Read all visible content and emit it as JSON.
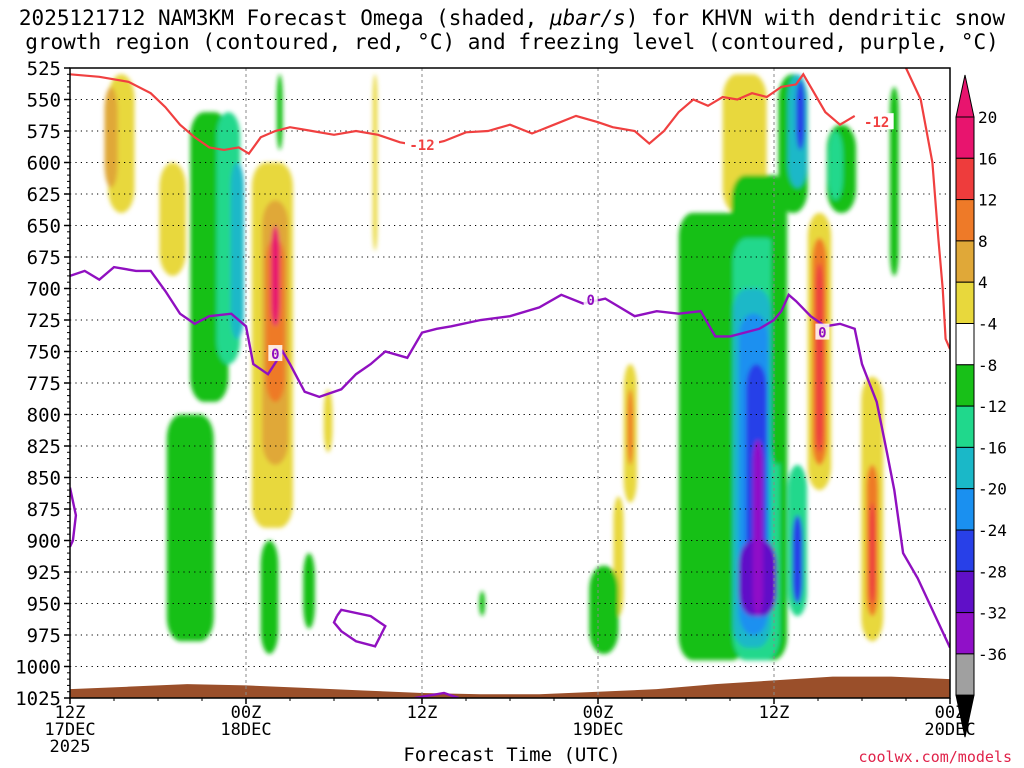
{
  "title": {
    "line1_prefix": "2025121712 NAM3KM Forecast Omega (shaded, ",
    "line1_unit": "μbar/s",
    "line1_suffix": ") for KHVN with dendritic snow",
    "line2": "growth region (contoured, red, °C) and freezing level (contoured, purple, °C)"
  },
  "credit": "coolwx.com/models",
  "colors": {
    "dgz_contour": "#f04040",
    "freezing_contour": "#9010c0",
    "terrain": "#9a4f2a",
    "grid": "#000000"
  },
  "chart_data": {
    "type": "heatmap",
    "title": "2025121712 NAM3KM Forecast Omega (shaded, μbar/s) for KHVN with dendritic snow growth region (contoured, red, °C) and freezing level (contoured, purple, °C)",
    "xlabel": "Forecast Time (UTC)",
    "ylabel": "",
    "x_range_hours": [
      0,
      60
    ],
    "xlim_labels": [
      "12Z 17DEC 2025",
      "00Z 20DEC"
    ],
    "y_levels_mb": [
      525,
      550,
      575,
      600,
      625,
      650,
      675,
      700,
      725,
      750,
      775,
      800,
      825,
      850,
      875,
      900,
      925,
      950,
      975,
      1000,
      1025
    ],
    "ylim": [
      525,
      1025
    ],
    "y_reversed": true,
    "x_ticks": [
      {
        "hour": 0,
        "lines": [
          "12Z",
          "17DEC",
          "2025"
        ]
      },
      {
        "hour": 12,
        "lines": [
          "00Z",
          "18DEC"
        ]
      },
      {
        "hour": 24,
        "lines": [
          "12Z"
        ]
      },
      {
        "hour": 36,
        "lines": [
          "00Z",
          "19DEC"
        ]
      },
      {
        "hour": 48,
        "lines": [
          "12Z"
        ]
      },
      {
        "hour": 60,
        "lines": [
          "00Z",
          "20DEC"
        ]
      }
    ],
    "colorbar": {
      "labels": [
        "20",
        "16",
        "12",
        "8",
        "4",
        "-4",
        "-8",
        "-12",
        "-16",
        "-20",
        "-24",
        "-28",
        "-32",
        "-36"
      ],
      "bins": [
        {
          "min": 20,
          "max": 24,
          "color": "#e8146e"
        },
        {
          "min": 16,
          "max": 20,
          "color": "#ee3c3c"
        },
        {
          "min": 12,
          "max": 16,
          "color": "#ee7a28"
        },
        {
          "min": 8,
          "max": 12,
          "color": "#e0a838"
        },
        {
          "min": 4,
          "max": 8,
          "color": "#e8d83c"
        },
        {
          "min": -4,
          "max": 4,
          "color": "#ffffff"
        },
        {
          "min": -8,
          "max": -4,
          "color": "#18c018"
        },
        {
          "min": -12,
          "max": -8,
          "color": "#20d88c"
        },
        {
          "min": -16,
          "max": -12,
          "color": "#1ab8c8"
        },
        {
          "min": -20,
          "max": -16,
          "color": "#1a90f0"
        },
        {
          "min": -24,
          "max": -20,
          "color": "#2840e8"
        },
        {
          "min": -28,
          "max": -24,
          "color": "#6010c8"
        },
        {
          "min": -32,
          "max": -28,
          "color": "#9010c8"
        },
        {
          "min": -36,
          "max": -32,
          "color": "#a0a0a0"
        }
      ],
      "top_arrow_color": "#e8146e",
      "bottom_arrow_color": "#000000"
    },
    "omega_features": [
      {
        "hour": 3.5,
        "top": 530,
        "bottom": 640,
        "width": 1.8,
        "value": 6
      },
      {
        "hour": 2.8,
        "top": 540,
        "bottom": 620,
        "width": 0.9,
        "value": 9
      },
      {
        "hour": 8.2,
        "top": 800,
        "bottom": 980,
        "width": 3.2,
        "value": -6
      },
      {
        "hour": 9.5,
        "top": 560,
        "bottom": 790,
        "width": 2.6,
        "value": -6
      },
      {
        "hour": 10.8,
        "top": 560,
        "bottom": 760,
        "width": 1.6,
        "value": -10
      },
      {
        "hour": 11.4,
        "top": 600,
        "bottom": 740,
        "width": 0.9,
        "value": -14
      },
      {
        "hour": 7.0,
        "top": 600,
        "bottom": 690,
        "width": 1.8,
        "value": 5
      },
      {
        "hour": 13.8,
        "top": 600,
        "bottom": 890,
        "width": 2.8,
        "value": 6
      },
      {
        "hour": 14.0,
        "top": 630,
        "bottom": 840,
        "width": 1.8,
        "value": 10
      },
      {
        "hour": 14.0,
        "top": 660,
        "bottom": 790,
        "width": 1.3,
        "value": 14
      },
      {
        "hour": 14.0,
        "top": 650,
        "bottom": 730,
        "width": 0.6,
        "value": 22
      },
      {
        "hour": 17.6,
        "top": 780,
        "bottom": 830,
        "width": 0.6,
        "value": 5
      },
      {
        "hour": 13.6,
        "top": 900,
        "bottom": 990,
        "width": 1.2,
        "value": -6
      },
      {
        "hour": 16.3,
        "top": 910,
        "bottom": 970,
        "width": 0.8,
        "value": -6
      },
      {
        "hour": 20.8,
        "top": 530,
        "bottom": 670,
        "width": 0.3,
        "value": 5
      },
      {
        "hour": 14.3,
        "top": 530,
        "bottom": 590,
        "width": 0.4,
        "value": -6
      },
      {
        "hour": 38.2,
        "top": 760,
        "bottom": 870,
        "width": 0.9,
        "value": 6
      },
      {
        "hour": 38.2,
        "top": 780,
        "bottom": 840,
        "width": 0.4,
        "value": 14
      },
      {
        "hour": 46.0,
        "top": 530,
        "bottom": 640,
        "width": 3.0,
        "value": 5
      },
      {
        "hour": 43.8,
        "top": 640,
        "bottom": 995,
        "width": 4.6,
        "value": -6
      },
      {
        "hour": 47.0,
        "top": 610,
        "bottom": 995,
        "width": 3.8,
        "value": -8
      },
      {
        "hour": 46.8,
        "top": 660,
        "bottom": 995,
        "width": 3.2,
        "value": -11
      },
      {
        "hour": 46.5,
        "top": 700,
        "bottom": 985,
        "width": 2.6,
        "value": -14
      },
      {
        "hour": 46.6,
        "top": 720,
        "bottom": 975,
        "width": 2.0,
        "value": -18
      },
      {
        "hour": 46.8,
        "top": 760,
        "bottom": 960,
        "width": 1.4,
        "value": -22
      },
      {
        "hour": 46.9,
        "top": 900,
        "bottom": 960,
        "width": 2.6,
        "value": -26
      },
      {
        "hour": 46.9,
        "top": 820,
        "bottom": 960,
        "width": 0.7,
        "value": -30
      },
      {
        "hour": 49.3,
        "top": 530,
        "bottom": 640,
        "width": 2.0,
        "value": -8
      },
      {
        "hour": 49.6,
        "top": 530,
        "bottom": 620,
        "width": 1.3,
        "value": -14
      },
      {
        "hour": 49.8,
        "top": 535,
        "bottom": 590,
        "width": 0.6,
        "value": -22
      },
      {
        "hour": 52.6,
        "top": 570,
        "bottom": 640,
        "width": 2.0,
        "value": -6
      },
      {
        "hour": 52.2,
        "top": 575,
        "bottom": 630,
        "width": 1.0,
        "value": -12
      },
      {
        "hour": 51.1,
        "top": 640,
        "bottom": 860,
        "width": 1.6,
        "value": 6
      },
      {
        "hour": 51.1,
        "top": 660,
        "bottom": 840,
        "width": 1.0,
        "value": 12
      },
      {
        "hour": 51.1,
        "top": 680,
        "bottom": 830,
        "width": 0.5,
        "value": 18
      },
      {
        "hour": 49.6,
        "top": 840,
        "bottom": 960,
        "width": 1.3,
        "value": -10
      },
      {
        "hour": 49.6,
        "top": 880,
        "bottom": 950,
        "width": 0.7,
        "value": -22
      },
      {
        "hour": 54.7,
        "top": 770,
        "bottom": 980,
        "width": 1.5,
        "value": 6
      },
      {
        "hour": 54.7,
        "top": 840,
        "bottom": 960,
        "width": 0.8,
        "value": 12
      },
      {
        "hour": 54.7,
        "top": 870,
        "bottom": 950,
        "width": 0.4,
        "value": 18
      },
      {
        "hour": 37.4,
        "top": 865,
        "bottom": 960,
        "width": 0.7,
        "value": 5
      },
      {
        "hour": 36.4,
        "top": 920,
        "bottom": 990,
        "width": 2.0,
        "value": -6
      },
      {
        "hour": 28.1,
        "top": 940,
        "bottom": 960,
        "width": 0.4,
        "value": -6
      },
      {
        "hour": 48.2,
        "top": 640,
        "bottom": 840,
        "width": 0.8,
        "value": -6
      },
      {
        "hour": 56.2,
        "top": 540,
        "bottom": 690,
        "width": 0.6,
        "value": -6
      }
    ],
    "dgz_contour": {
      "label": "-12",
      "label_positions": [
        {
          "hour": 24,
          "mb": 586
        },
        {
          "hour": 55.0,
          "mb": 568
        }
      ],
      "points": [
        [
          0,
          530
        ],
        [
          2,
          532
        ],
        [
          4,
          536
        ],
        [
          5.5,
          545
        ],
        [
          6.5,
          556
        ],
        [
          7.5,
          570
        ],
        [
          8.5,
          580
        ],
        [
          9.5,
          588
        ],
        [
          10.5,
          590
        ],
        [
          11.5,
          588
        ],
        [
          12.2,
          593
        ],
        [
          13,
          580
        ],
        [
          14,
          575
        ],
        [
          15,
          572
        ],
        [
          16.5,
          575
        ],
        [
          18,
          578
        ],
        [
          19.5,
          575
        ],
        [
          21,
          578
        ],
        [
          22.5,
          584
        ],
        [
          24,
          587
        ],
        [
          25.5,
          583
        ],
        [
          27,
          576
        ],
        [
          28.5,
          575
        ],
        [
          30,
          570
        ],
        [
          31.5,
          577
        ],
        [
          33,
          570
        ],
        [
          34.5,
          563
        ],
        [
          36,
          568
        ],
        [
          37,
          572
        ],
        [
          38.5,
          575
        ],
        [
          39.5,
          585
        ],
        [
          40.5,
          575
        ],
        [
          41.5,
          560
        ],
        [
          42.5,
          550
        ],
        [
          43.5,
          555
        ],
        [
          44.5,
          548
        ],
        [
          45.5,
          550
        ],
        [
          46.5,
          545
        ],
        [
          47.5,
          548
        ],
        [
          48.5,
          540
        ],
        [
          49.5,
          538
        ],
        [
          50,
          530
        ],
        [
          50.5,
          540
        ],
        [
          51.5,
          560
        ],
        [
          52.5,
          570
        ],
        [
          53.5,
          563
        ]
      ],
      "points_right": [
        [
          57,
          525
        ],
        [
          58,
          550
        ],
        [
          58.8,
          600
        ],
        [
          59.2,
          660
        ],
        [
          59.5,
          700
        ],
        [
          59.7,
          740
        ],
        [
          60,
          748
        ]
      ]
    },
    "freezing_contour": {
      "label": "0",
      "label_positions": [
        {
          "hour": 14.0,
          "mb": 752
        },
        {
          "hour": 35.5,
          "mb": 709
        },
        {
          "hour": 51.3,
          "mb": 735
        }
      ],
      "points": [
        [
          0,
          690
        ],
        [
          1,
          686
        ],
        [
          2,
          693
        ],
        [
          3,
          683
        ],
        [
          4.5,
          686
        ],
        [
          5.5,
          686
        ],
        [
          6.5,
          702
        ],
        [
          7.5,
          720
        ],
        [
          8.5,
          728
        ],
        [
          9.5,
          722
        ],
        [
          11,
          720
        ],
        [
          12,
          730
        ],
        [
          12.5,
          760
        ],
        [
          13.5,
          768
        ],
        [
          14.5,
          750
        ],
        [
          15,
          760
        ],
        [
          16,
          782
        ],
        [
          17,
          786
        ],
        [
          18.5,
          780
        ],
        [
          19.5,
          768
        ],
        [
          20.5,
          760
        ],
        [
          21.5,
          750
        ],
        [
          23,
          755
        ],
        [
          24,
          735
        ],
        [
          25,
          732
        ],
        [
          26,
          730
        ],
        [
          28,
          725
        ],
        [
          30,
          722
        ],
        [
          32,
          715
        ],
        [
          33.5,
          705
        ],
        [
          35,
          712
        ],
        [
          36.5,
          708
        ],
        [
          37.5,
          715
        ],
        [
          38.5,
          722
        ],
        [
          40,
          718
        ],
        [
          41.5,
          720
        ],
        [
          43,
          718
        ],
        [
          44,
          738
        ],
        [
          45,
          738
        ],
        [
          46,
          735
        ],
        [
          47,
          732
        ],
        [
          48,
          725
        ],
        [
          48.5,
          718
        ],
        [
          49,
          705
        ],
        [
          49.5,
          710
        ],
        [
          50.5,
          722
        ],
        [
          51.5,
          730
        ],
        [
          52.5,
          728
        ],
        [
          53.5,
          732
        ],
        [
          54,
          760
        ],
        [
          55,
          790
        ],
        [
          55.7,
          830
        ],
        [
          56.2,
          860
        ],
        [
          56.8,
          910
        ],
        [
          57.8,
          930
        ],
        [
          59,
          960
        ],
        [
          60,
          985
        ]
      ],
      "points_left": [
        [
          0,
          858
        ],
        [
          0.4,
          880
        ],
        [
          0.2,
          900
        ],
        [
          0,
          905
        ]
      ],
      "points_loop": [
        [
          18.2,
          960
        ],
        [
          18.5,
          955
        ],
        [
          20.5,
          960
        ],
        [
          21.5,
          968
        ],
        [
          20.8,
          984
        ],
        [
          19.5,
          980
        ],
        [
          18.5,
          972
        ],
        [
          18.0,
          965
        ],
        [
          18.2,
          960
        ]
      ],
      "points_bottom": [
        [
          23.5,
          1025
        ],
        [
          25.5,
          1021
        ],
        [
          26.5,
          1025
        ]
      ]
    },
    "terrain": {
      "surface": [
        [
          0,
          1018
        ],
        [
          4,
          1016
        ],
        [
          8,
          1014
        ],
        [
          12,
          1015
        ],
        [
          16,
          1017
        ],
        [
          20,
          1019
        ],
        [
          24,
          1021
        ],
        [
          28,
          1022
        ],
        [
          32,
          1022
        ],
        [
          36,
          1020
        ],
        [
          40,
          1018
        ],
        [
          44,
          1014
        ],
        [
          48,
          1011
        ],
        [
          52,
          1008
        ],
        [
          56,
          1008
        ],
        [
          60,
          1010
        ]
      ]
    }
  }
}
